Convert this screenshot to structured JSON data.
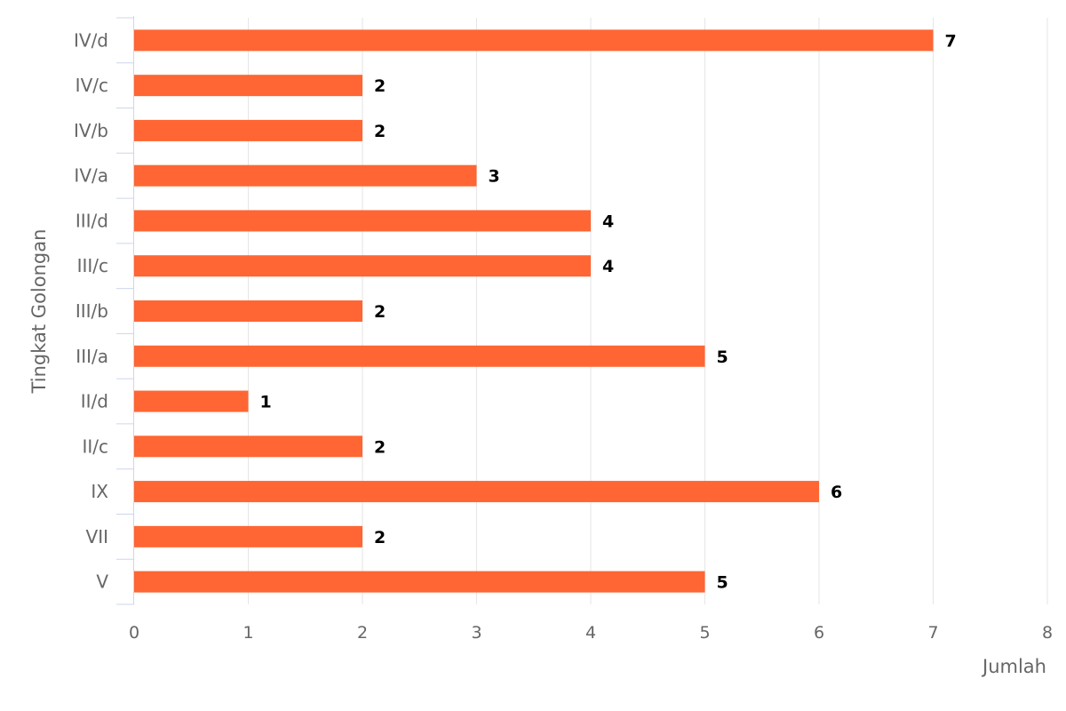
{
  "chart_data": {
    "type": "bar",
    "orientation": "horizontal",
    "categories": [
      "IV/d",
      "IV/c",
      "IV/b",
      "IV/a",
      "III/d",
      "III/c",
      "III/b",
      "III/a",
      "II/d",
      "II/c",
      "IX",
      "VII",
      "V"
    ],
    "values": [
      7,
      2,
      2,
      3,
      4,
      4,
      2,
      5,
      1,
      2,
      6,
      2,
      5
    ],
    "xlabel": "Jumlah",
    "ylabel": "Tingkat Golongan",
    "xlim": [
      0,
      8
    ],
    "x_ticks": [
      "0",
      "1",
      "2",
      "3",
      "4",
      "5",
      "6",
      "7",
      "8"
    ],
    "grid": true,
    "legend": "none",
    "data_labels": true,
    "colors": {
      "bar": "#ff6633"
    }
  }
}
